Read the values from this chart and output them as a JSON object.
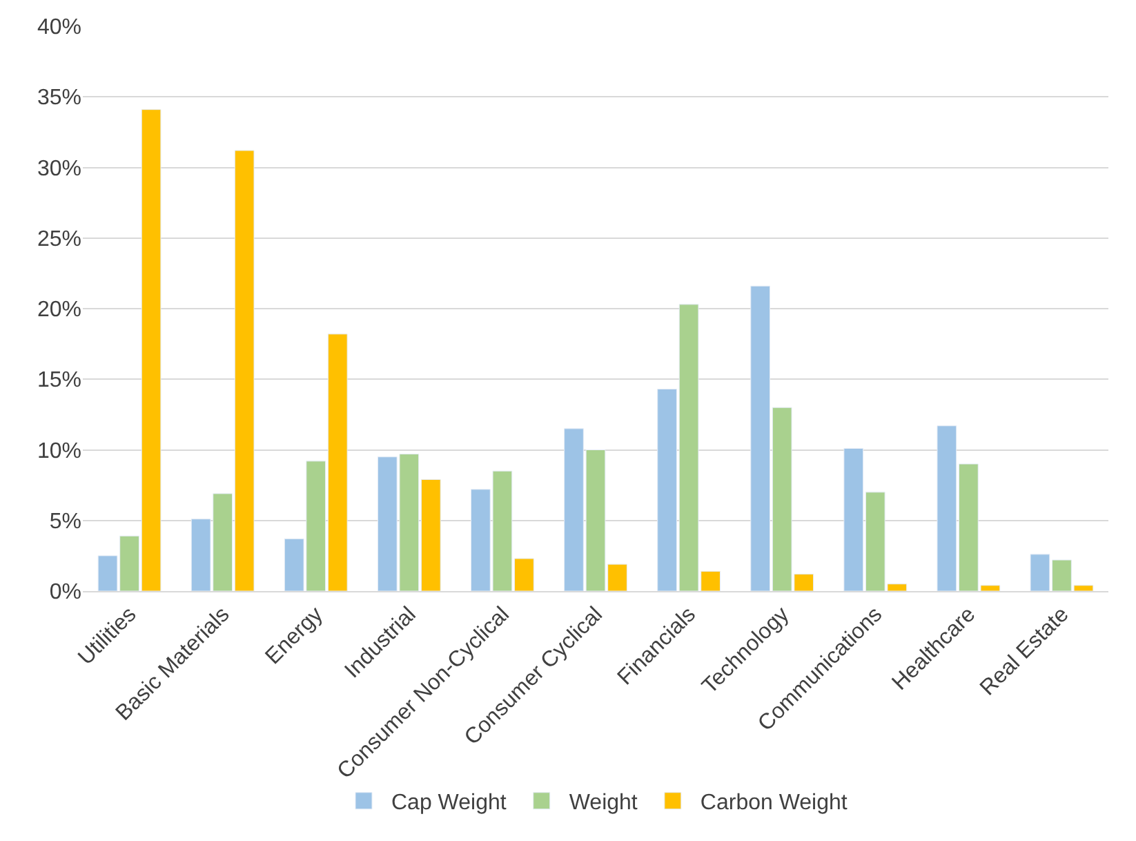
{
  "chart_data": {
    "type": "bar",
    "categories": [
      "Utilities",
      "Basic Materials",
      "Energy",
      "Industrial",
      "Consumer Non-Cyclical",
      "Consumer Cyclical",
      "Financials",
      "Technology",
      "Communications",
      "Healthcare",
      "Real Estate"
    ],
    "series": [
      {
        "name": "Cap Weight",
        "color": "#9dc3e6",
        "values": [
          2.5,
          5.1,
          3.7,
          9.5,
          7.2,
          11.5,
          14.3,
          21.6,
          10.1,
          11.7,
          2.6
        ]
      },
      {
        "name": "Weight",
        "color": "#a9d18e",
        "values": [
          3.9,
          6.9,
          9.2,
          9.7,
          8.5,
          10.0,
          20.3,
          13.0,
          7.0,
          9.0,
          2.2
        ]
      },
      {
        "name": "Carbon Weight",
        "color": "#ffc000",
        "values": [
          34.1,
          31.2,
          18.2,
          7.9,
          2.3,
          1.9,
          1.4,
          1.2,
          0.5,
          0.4,
          0.4
        ]
      }
    ],
    "ylim": [
      0,
      40
    ],
    "yticks": [
      {
        "value": 0,
        "label": "0%"
      },
      {
        "value": 5,
        "label": "5%"
      },
      {
        "value": 10,
        "label": "10%"
      },
      {
        "value": 15,
        "label": "15%"
      },
      {
        "value": 20,
        "label": "20%"
      },
      {
        "value": 25,
        "label": "25%"
      },
      {
        "value": 30,
        "label": "30%"
      },
      {
        "value": 35,
        "label": "35%"
      },
      {
        "value": 40,
        "label": "40%"
      }
    ],
    "grid": "y",
    "legend": "bottom"
  }
}
